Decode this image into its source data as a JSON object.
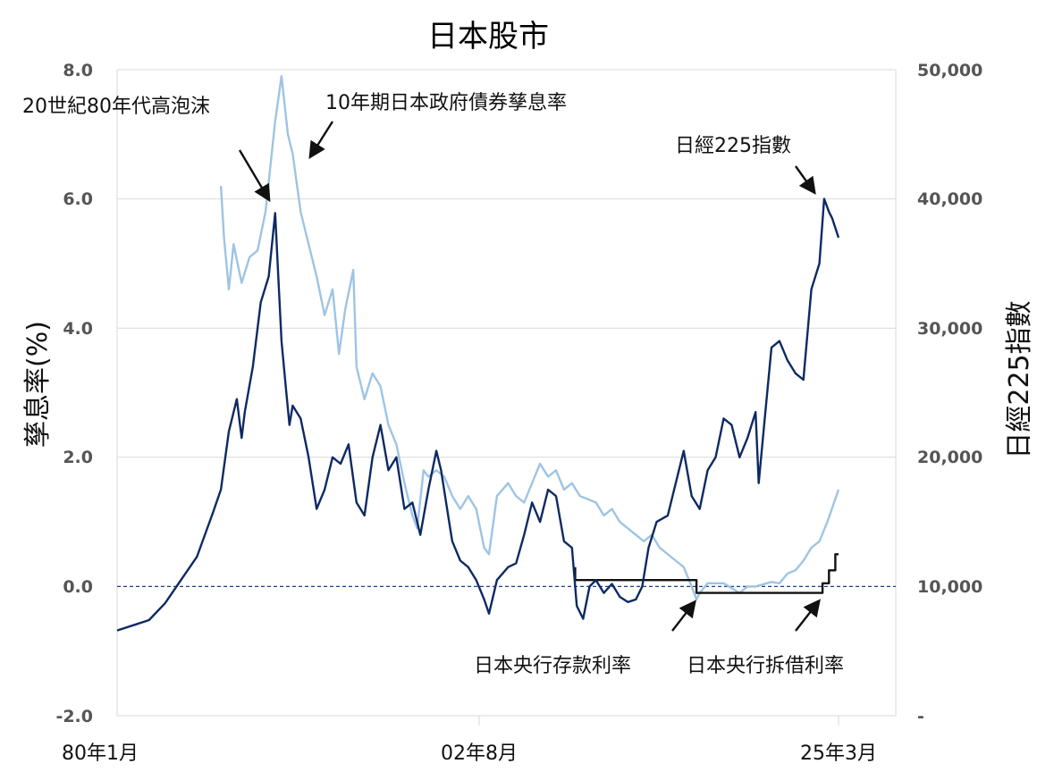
{
  "chart_data": {
    "type": "line",
    "title": "日本股市",
    "ylabel_left": "孳息率(%)",
    "ylabel_right": "日經225指數",
    "ylim_left": [
      -2.0,
      8.0
    ],
    "ylim_right": [
      0,
      50000
    ],
    "yticks_left": [
      "8.0",
      "6.0",
      "4.0",
      "2.0",
      "0.0",
      "-2.0"
    ],
    "yticks_right": [
      "50,000",
      "40,000",
      "30,000",
      "20,000",
      "10,000",
      "-"
    ],
    "x_range": [
      1980.0,
      2025.2
    ],
    "xticks": [
      {
        "label": "80年1月",
        "x": 1980.0
      },
      {
        "label": "02年8月",
        "x": 2002.6
      },
      {
        "label": "25年3月",
        "x": 2025.2
      }
    ],
    "grid": true,
    "zero_line": true,
    "colors": {
      "nikkei": "#0d2a63",
      "jgb10y": "#9ec4e4",
      "boj": "#111111",
      "zero_line": "#1f3f80",
      "grid": "#d9d9d9"
    },
    "annotations": [
      {
        "text": "20世紀80年代高泡沫",
        "target_series": "日經225指數",
        "target_x": 1989.9
      },
      {
        "text": "10年期日本政府債券孳息率",
        "target_series": "10年期日本政府債券孳息率",
        "target_x": 1991.1
      },
      {
        "text": "日經225指數",
        "target_series": "日經225指數",
        "target_x": 2024.2
      },
      {
        "text": "日本央行存款利率",
        "target_series": "日本央行存款利率",
        "target_x": 2016.3
      },
      {
        "text": "日本央行拆借利率",
        "target_series": "日本央行拆借利率",
        "target_x": 2024.1
      }
    ],
    "series": [
      {
        "name": "日經225指數",
        "axis": "right",
        "x": [
          1980.0,
          1981.0,
          1982.0,
          1983.0,
          1984.0,
          1985.0,
          1986.0,
          1986.5,
          1987.0,
          1987.5,
          1987.8,
          1988.0,
          1988.5,
          1989.0,
          1989.5,
          1989.9,
          1990.1,
          1990.3,
          1990.6,
          1990.8,
          1991.0,
          1991.5,
          1992.0,
          1992.5,
          1993.0,
          1993.5,
          1994.0,
          1994.5,
          1995.0,
          1995.5,
          1996.0,
          1996.5,
          1997.0,
          1997.5,
          1998.0,
          1998.5,
          1999.0,
          1999.5,
          2000.0,
          2000.3,
          2000.8,
          2001.0,
          2001.5,
          2002.0,
          2002.5,
          2003.0,
          2003.3,
          2003.8,
          2004.5,
          2005.0,
          2005.5,
          2006.0,
          2006.5,
          2007.0,
          2007.5,
          2008.0,
          2008.5,
          2008.8,
          2009.2,
          2009.6,
          2010.0,
          2010.5,
          2011.0,
          2011.5,
          2012.0,
          2012.5,
          2012.9,
          2013.3,
          2013.8,
          2014.5,
          2015.0,
          2015.5,
          2016.0,
          2016.5,
          2017.0,
          2017.5,
          2018.0,
          2018.5,
          2019.0,
          2019.5,
          2020.0,
          2020.2,
          2020.5,
          2021.0,
          2021.5,
          2022.0,
          2022.5,
          2023.0,
          2023.5,
          2024.0,
          2024.3,
          2024.6,
          2024.8,
          2025.2
        ],
        "y": [
          6600,
          7000,
          7400,
          8700,
          10500,
          12300,
          15700,
          17500,
          22000,
          24500,
          21500,
          23500,
          27000,
          32000,
          34000,
          38900,
          34000,
          29000,
          25000,
          22500,
          24000,
          23000,
          20000,
          16000,
          17500,
          20000,
          19500,
          21000,
          16500,
          15500,
          20000,
          22500,
          19000,
          20000,
          16000,
          16500,
          14000,
          17500,
          20500,
          19000,
          15000,
          13500,
          12000,
          11500,
          10500,
          9000,
          7900,
          10500,
          11500,
          11800,
          14000,
          16500,
          15000,
          17500,
          17000,
          13500,
          13000,
          8500,
          7500,
          10000,
          10500,
          9500,
          10200,
          9200,
          8800,
          9000,
          10000,
          13000,
          15000,
          15500,
          18000,
          20500,
          17000,
          16000,
          19000,
          20000,
          23000,
          22500,
          20000,
          21500,
          23500,
          18000,
          22000,
          28500,
          29000,
          27500,
          26500,
          26000,
          33000,
          35000,
          40000,
          39000,
          38500,
          37000
        ]
      },
      {
        "name": "10年期日本政府債券孳息率",
        "axis": "left",
        "x": [
          1986.5,
          1986.7,
          1987.0,
          1987.3,
          1987.8,
          1988.3,
          1988.8,
          1989.3,
          1989.9,
          1990.3,
          1990.7,
          1991.0,
          1991.5,
          1992.0,
          1992.5,
          1993.0,
          1993.5,
          1993.9,
          1994.3,
          1994.8,
          1995.0,
          1995.5,
          1996.0,
          1996.5,
          1997.0,
          1997.5,
          1998.0,
          1998.5,
          1998.8,
          1999.2,
          1999.5,
          2000.0,
          2000.5,
          2001.0,
          2001.5,
          2002.0,
          2002.5,
          2003.0,
          2003.3,
          2003.8,
          2004.5,
          2005.0,
          2005.5,
          2006.0,
          2006.5,
          2007.0,
          2007.5,
          2008.0,
          2008.5,
          2009.0,
          2010.0,
          2010.5,
          2011.0,
          2011.5,
          2012.0,
          2012.5,
          2013.0,
          2013.5,
          2014.0,
          2014.5,
          2015.0,
          2015.5,
          2016.0,
          2016.3,
          2016.5,
          2017.0,
          2018.0,
          2019.0,
          2019.5,
          2020.0,
          2021.0,
          2021.5,
          2022.0,
          2022.5,
          2023.0,
          2023.5,
          2024.0,
          2024.5,
          2025.2
        ],
        "y": [
          6.2,
          5.4,
          4.6,
          5.3,
          4.7,
          5.1,
          5.2,
          5.8,
          7.2,
          7.9,
          7.0,
          6.7,
          5.8,
          5.3,
          4.8,
          4.2,
          4.6,
          3.6,
          4.3,
          4.9,
          3.4,
          2.9,
          3.3,
          3.1,
          2.5,
          2.2,
          1.6,
          1.1,
          0.9,
          1.8,
          1.7,
          1.8,
          1.7,
          1.4,
          1.2,
          1.4,
          1.2,
          0.6,
          0.5,
          1.4,
          1.6,
          1.4,
          1.3,
          1.6,
          1.9,
          1.7,
          1.8,
          1.5,
          1.6,
          1.4,
          1.3,
          1.1,
          1.2,
          1.0,
          0.9,
          0.8,
          0.7,
          0.8,
          0.6,
          0.5,
          0.4,
          0.3,
          0.0,
          -0.2,
          -0.1,
          0.05,
          0.05,
          -0.1,
          0.0,
          0.0,
          0.07,
          0.05,
          0.2,
          0.25,
          0.4,
          0.6,
          0.7,
          1.0,
          1.5
        ]
      },
      {
        "name": "日本央行存款利率",
        "axis": "left",
        "x": [
          2008.7,
          2008.7,
          2016.3,
          2016.3,
          2016.6
        ],
        "y": [
          0.3,
          0.1,
          0.1,
          -0.1,
          -0.1
        ]
      },
      {
        "name": "日本央行拆借利率",
        "axis": "left",
        "x": [
          2016.6,
          2024.2,
          2024.2,
          2024.6,
          2024.6,
          2025.0,
          2025.0,
          2025.2
        ],
        "y": [
          -0.1,
          -0.1,
          0.05,
          0.05,
          0.25,
          0.25,
          0.5,
          0.5
        ]
      }
    ]
  }
}
